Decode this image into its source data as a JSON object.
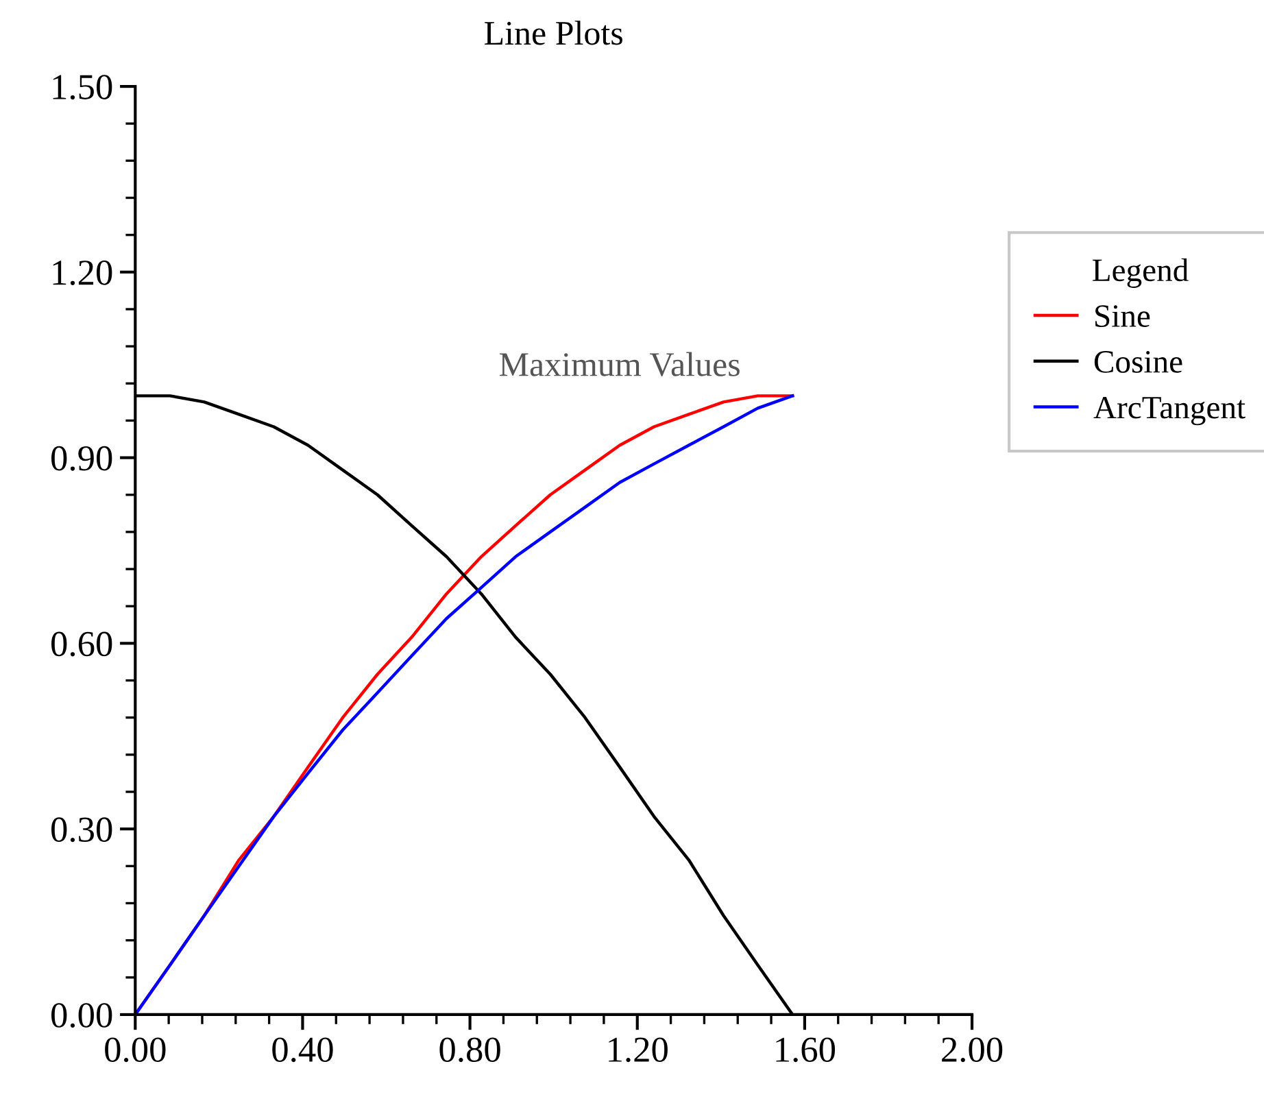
{
  "chart_data": {
    "type": "line",
    "title": "Line Plots",
    "x": [
      0,
      0.083,
      0.165,
      0.248,
      0.331,
      0.413,
      0.496,
      0.579,
      0.661,
      0.744,
      0.827,
      0.909,
      0.992,
      1.075,
      1.158,
      1.24,
      1.323,
      1.406,
      1.488,
      1.571
    ],
    "series": [
      {
        "name": "Sine",
        "color": "#ff0000",
        "values": [
          0,
          0.08,
          0.16,
          0.25,
          0.32,
          0.4,
          0.48,
          0.55,
          0.61,
          0.68,
          0.74,
          0.79,
          0.84,
          0.88,
          0.92,
          0.95,
          0.97,
          0.99,
          1.0,
          1.0
        ]
      },
      {
        "name": "Cosine",
        "color": "#000000",
        "values": [
          1.0,
          1.0,
          0.99,
          0.97,
          0.95,
          0.92,
          0.88,
          0.84,
          0.79,
          0.74,
          0.68,
          0.61,
          0.55,
          0.48,
          0.4,
          0.32,
          0.25,
          0.16,
          0.08,
          0.0
        ]
      },
      {
        "name": "ArcTangent",
        "color": "#0000ff",
        "values": [
          0,
          0.08,
          0.16,
          0.24,
          0.32,
          0.39,
          0.46,
          0.52,
          0.58,
          0.64,
          0.69,
          0.74,
          0.78,
          0.82,
          0.86,
          0.89,
          0.92,
          0.95,
          0.98,
          1.0
        ]
      }
    ],
    "annotations": [
      "Maximum Values"
    ],
    "legend_title": "Legend",
    "legend": "right",
    "xlim": [
      0,
      2.0
    ],
    "xticks": [
      {
        "value": 0,
        "label": "0.00"
      },
      {
        "value": 0.4,
        "label": "0.40"
      },
      {
        "value": 0.8,
        "label": "0.80"
      },
      {
        "value": 1.2,
        "label": "1.20"
      },
      {
        "value": 1.6,
        "label": "1.60"
      },
      {
        "value": 2.0,
        "label": "2.00"
      }
    ],
    "ylim": [
      0,
      1.5
    ],
    "yticks": [
      {
        "value": 0,
        "label": "0.00"
      },
      {
        "value": 0.3,
        "label": "0.30"
      },
      {
        "value": 0.6,
        "label": "0.60"
      },
      {
        "value": 0.9,
        "label": "0.90"
      },
      {
        "value": 1.2,
        "label": "1.20"
      },
      {
        "value": 1.5,
        "label": "1.50"
      }
    ],
    "grid": false
  }
}
